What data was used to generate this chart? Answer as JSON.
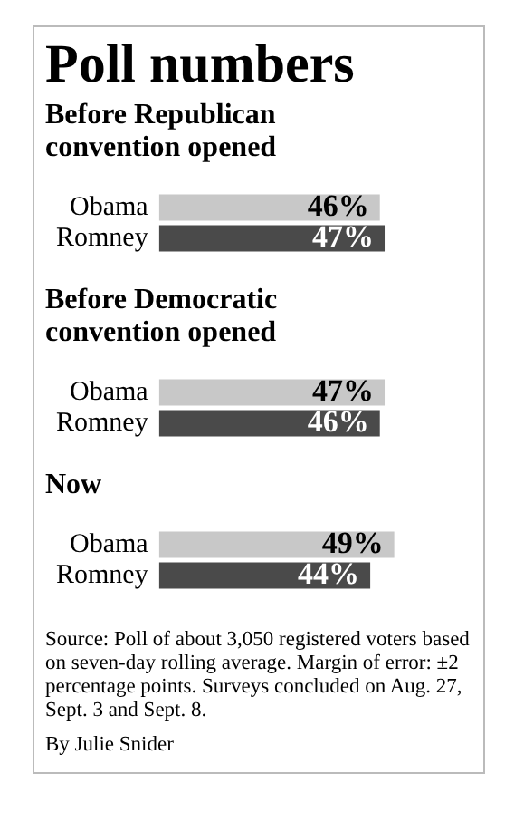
{
  "chart_data": [
    {
      "type": "bar",
      "orientation": "horizontal",
      "title": "Poll numbers",
      "subtitle": "Before Republican convention opened",
      "categories": [
        "Obama",
        "Romney"
      ],
      "values": [
        46,
        47
      ],
      "value_labels": [
        "46%",
        "47%"
      ],
      "colors": [
        "#c8c8c8",
        "#4a4a4a"
      ],
      "tick_labels": "y",
      "grid": false,
      "legend": false
    },
    {
      "type": "bar",
      "orientation": "horizontal",
      "subtitle": "Before Democratic convention opened",
      "categories": [
        "Obama",
        "Romney"
      ],
      "values": [
        47,
        46
      ],
      "value_labels": [
        "47%",
        "46%"
      ],
      "colors": [
        "#c8c8c8",
        "#4a4a4a"
      ],
      "tick_labels": "y",
      "grid": false,
      "legend": false
    },
    {
      "type": "bar",
      "orientation": "horizontal",
      "subtitle": "Now",
      "categories": [
        "Obama",
        "Romney"
      ],
      "values": [
        49,
        44
      ],
      "value_labels": [
        "49%",
        "44%"
      ],
      "colors": [
        "#c8c8c8",
        "#4a4a4a"
      ],
      "tick_labels": "y",
      "grid": false,
      "legend": false,
      "annotations": [
        "Source: Poll of about 3,050 registered voters based on seven-day rolling average. Margin of error: ±2 percentage points. Surveys concluded on Aug. 27, Sept. 3 and Sept. 8.",
        "By Julie Snider"
      ]
    }
  ]
}
